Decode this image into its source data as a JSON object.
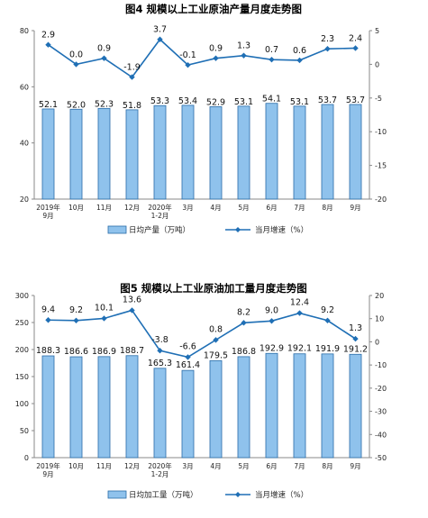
{
  "colors": {
    "bar_fill": "#8fc2ec",
    "bar_stroke": "#2a6ca8",
    "line": "#1f6fb5",
    "axis": "#888888",
    "grid": "#dddddd"
  },
  "chart_data": [
    {
      "type": "bar+line",
      "title": "图4 规模以上工业原油产量月度走势图",
      "categories": [
        [
          "2019年",
          "9月"
        ],
        [
          "10月"
        ],
        [
          "11月"
        ],
        [
          "12月"
        ],
        [
          "2020年",
          "1-2月"
        ],
        [
          "3月"
        ],
        [
          "4月"
        ],
        [
          "5月"
        ],
        [
          "6月"
        ],
        [
          "7月"
        ],
        [
          "8月"
        ],
        [
          "9月"
        ]
      ],
      "left_axis": {
        "min": 20,
        "max": 80,
        "ticks": [
          20,
          40,
          60,
          80
        ]
      },
      "right_axis": {
        "min": -20,
        "max": 5,
        "ticks": [
          5,
          0,
          -5,
          -10,
          -15,
          -20
        ]
      },
      "bar_series": {
        "name": "日均产量（万吨）",
        "values": [
          52.1,
          52.0,
          52.3,
          51.8,
          53.3,
          53.4,
          52.9,
          53.1,
          54.1,
          53.1,
          53.7,
          53.7
        ],
        "labels": [
          "52.1",
          "52.0",
          "52.3",
          "51.8",
          "53.3",
          "53.4",
          "52.9",
          "53.1",
          "54.1",
          "53.1",
          "53.7",
          "53.7"
        ]
      },
      "line_series": {
        "name": "当月增速（%）",
        "values": [
          2.9,
          0.0,
          0.9,
          -1.9,
          3.7,
          -0.1,
          0.9,
          1.3,
          0.7,
          0.6,
          2.3,
          2.4
        ],
        "labels": [
          "2.9",
          "0.0",
          "0.9",
          "-1.9",
          "3.7",
          "-0.1",
          "0.9",
          "1.3",
          "0.7",
          "0.6",
          "2.3",
          "2.4"
        ]
      }
    },
    {
      "type": "bar+line",
      "title": "图5 规模以上工业原油加工量月度走势图",
      "categories": [
        [
          "2019年",
          "9月"
        ],
        [
          "10月"
        ],
        [
          "11月"
        ],
        [
          "12月"
        ],
        [
          "2020年",
          "1-2月"
        ],
        [
          "3月"
        ],
        [
          "4月"
        ],
        [
          "5月"
        ],
        [
          "6月"
        ],
        [
          "7月"
        ],
        [
          "8月"
        ],
        [
          "9月"
        ]
      ],
      "left_axis": {
        "min": 0,
        "max": 300,
        "ticks": [
          0,
          50,
          100,
          150,
          200,
          250,
          300
        ]
      },
      "right_axis": {
        "min": -50,
        "max": 20,
        "ticks": [
          20,
          10,
          0,
          -10,
          -20,
          -30,
          -40,
          -50
        ]
      },
      "bar_series": {
        "name": "日均加工量（万吨）",
        "values": [
          188.3,
          186.6,
          186.9,
          188.7,
          165.3,
          161.4,
          179.5,
          186.8,
          192.9,
          192.1,
          191.9,
          191.2
        ],
        "labels": [
          "188.3",
          "186.6",
          "186.9",
          "188.7",
          "165.3",
          "161.4",
          "179.5",
          "186.8",
          "192.9",
          "192.1",
          "191.9",
          "191.2"
        ]
      },
      "line_series": {
        "name": "当月增速（%）",
        "values": [
          9.4,
          9.2,
          10.1,
          13.6,
          -3.8,
          -6.6,
          0.8,
          8.2,
          9.0,
          12.4,
          9.2,
          1.3
        ],
        "labels": [
          "9.4",
          "9.2",
          "10.1",
          "13.6",
          "-3.8",
          "-6.6",
          "0.8",
          "8.2",
          "9.0",
          "12.4",
          "9.2",
          "1.3"
        ]
      }
    }
  ]
}
